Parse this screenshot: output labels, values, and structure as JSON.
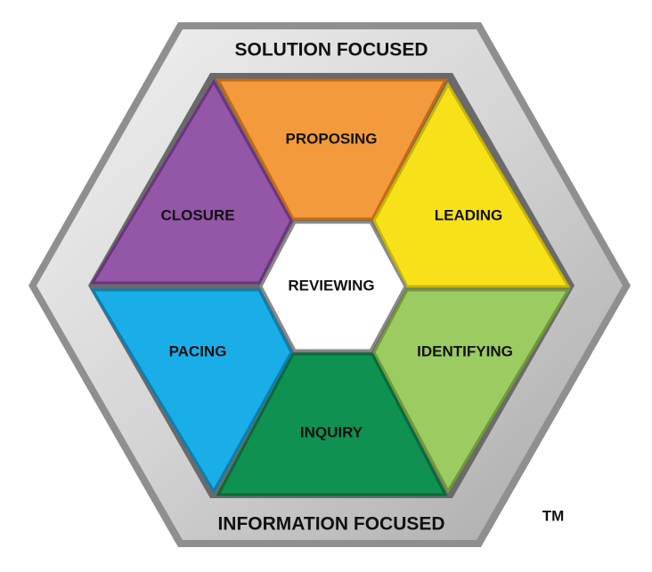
{
  "frame": {
    "top_label": "SOLUTION FOCUSED",
    "bottom_label": "INFORMATION FOCUSED",
    "trademark": "TM"
  },
  "center": {
    "label": "REVIEWING",
    "color": "#ffffff"
  },
  "segments": [
    {
      "key": "proposing",
      "label": "PROPOSING",
      "color": "#f39a3c"
    },
    {
      "key": "leading",
      "label": "LEADING",
      "color": "#f7e21a"
    },
    {
      "key": "identifying",
      "label": "IDENTIFYING",
      "color": "#9ccb61"
    },
    {
      "key": "inquiry",
      "label": "INQUIRY",
      "color": "#0f9152"
    },
    {
      "key": "pacing",
      "label": "PACING",
      "color": "#1aaee8"
    },
    {
      "key": "closure",
      "label": "CLOSURE",
      "color": "#9456a6"
    }
  ],
  "colors": {
    "frame_outer": "#9a9a9a",
    "frame_inner": "#dcdcdc",
    "text": "#111111"
  }
}
